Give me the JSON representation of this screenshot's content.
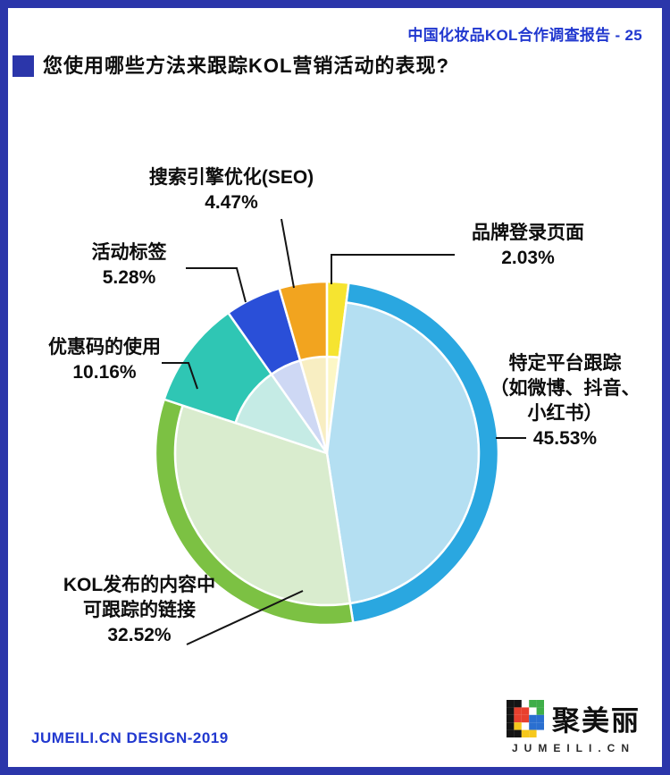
{
  "theme": {
    "frame_blue": "#2b36aa",
    "text_blue": "#2138cf",
    "text_black": "#0d0d0d"
  },
  "header": {
    "report_title": "中国化妆品KOL合作调查报告 - 25"
  },
  "question": {
    "title": "您使用哪些方法来跟踪KOL营销活动的表现?"
  },
  "chart_data": {
    "type": "pie",
    "title": "您使用哪些方法来跟踪KOL营销活动的表现?",
    "unit": "%",
    "start_angle": "top",
    "direction": "clockwise",
    "legend_position": "callout-labels",
    "segments": [
      {
        "label": "品牌登录页面",
        "value": 2.03,
        "value_label": "2.03%",
        "pastel": "#fcf7c6",
        "solid": "#f6e430",
        "ring": "wide"
      },
      {
        "label": "特定平台跟踪（如微博、抖音、小红书）",
        "value": 45.53,
        "value_label": "45.53%",
        "pastel": "#b4dff2",
        "solid": "#2aa7e0",
        "ring": "thin"
      },
      {
        "label": "KOL发布的内容中可跟踪的链接",
        "value": 32.52,
        "value_label": "32.52%",
        "pastel": "#d9ecce",
        "solid": "#7cc143",
        "ring": "thin"
      },
      {
        "label": "优惠码的使用",
        "value": 10.16,
        "value_label": "10.16%",
        "pastel": "#c5ebe5",
        "solid": "#2fc6b4",
        "ring": "wide"
      },
      {
        "label": "活动标签",
        "value": 5.28,
        "value_label": "5.28%",
        "pastel": "#ced8f4",
        "solid": "#2a4fd8",
        "ring": "wide"
      },
      {
        "label": "搜索引擎优化(SEO)",
        "value": 4.47,
        "value_label": "4.47%",
        "pastel": "#f8eec2",
        "solid": "#f2a41f",
        "ring": "wide"
      }
    ]
  },
  "callouts": {
    "seo": {
      "line1": "搜索引擎优化(SEO)",
      "value": "4.47%"
    },
    "landing": {
      "line1": "品牌登录页面",
      "value": "2.03%"
    },
    "hashtag": {
      "line1": "活动标签",
      "value": "5.28%"
    },
    "coupon": {
      "line1": "优惠码的使用",
      "value": "10.16%"
    },
    "platform": {
      "line1": "特定平台跟踪",
      "line2": "（如微博、抖音、",
      "line3": "小红书）",
      "value": "45.53%"
    },
    "kol": {
      "line1": "KOL发布的内容中",
      "line2": "可跟踪的链接",
      "value": "32.52%"
    }
  },
  "footer": {
    "credit": "JUMEILI.CN DESIGN-2019",
    "logo_text": "聚美丽",
    "logo_domain": "JUMEILI.CN"
  }
}
